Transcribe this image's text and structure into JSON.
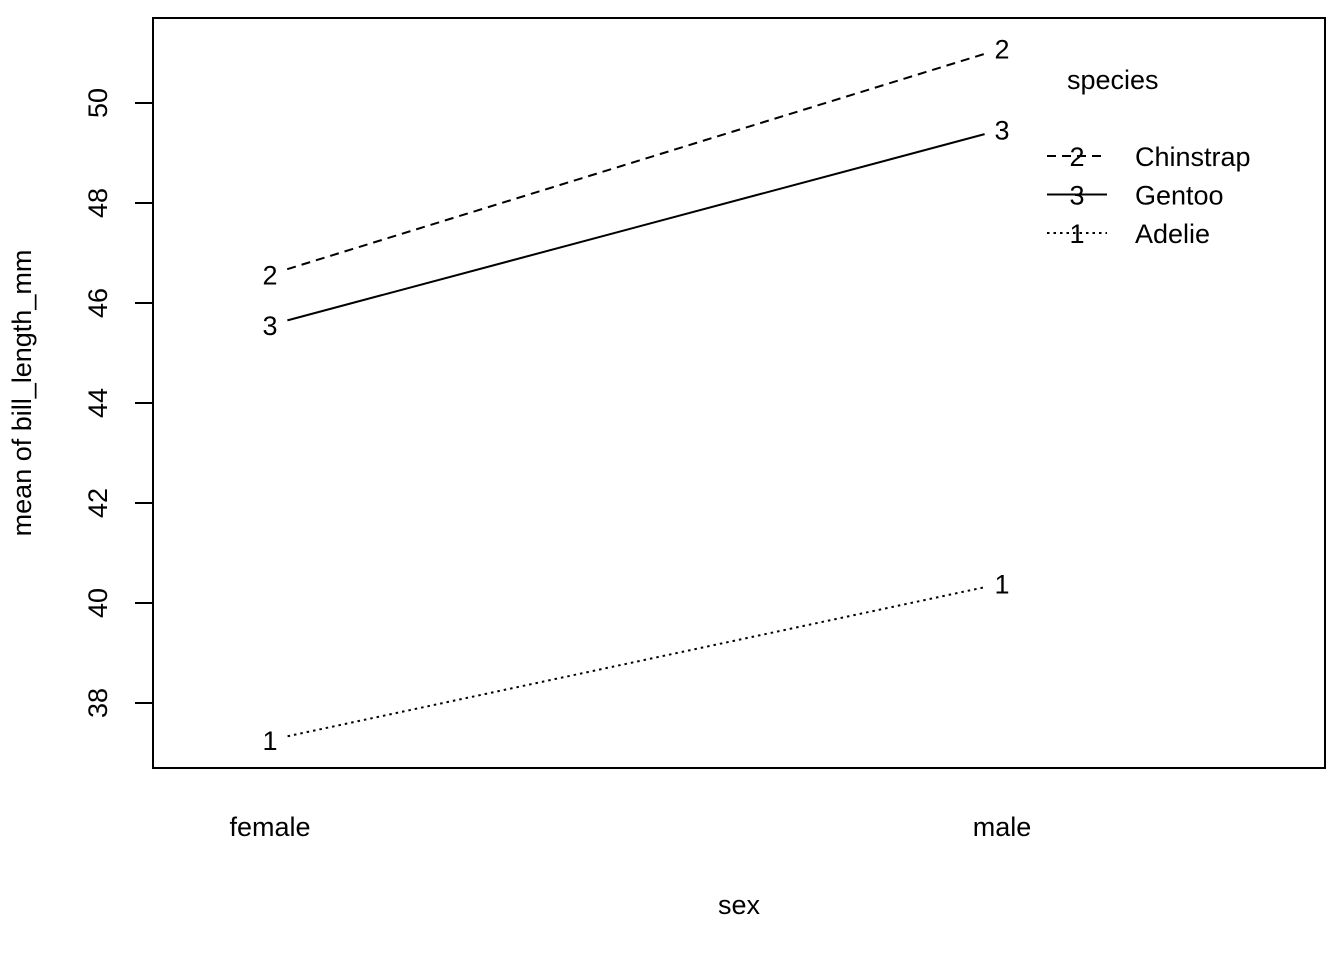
{
  "chart_data": {
    "type": "line",
    "title": "",
    "xlabel": "sex",
    "ylabel": "mean of  bill_length_mm",
    "categories": [
      "female",
      "male"
    ],
    "ylim": [
      36.7,
      51.7
    ],
    "yticks": [
      "38",
      "40",
      "42",
      "44",
      "46",
      "48",
      "50"
    ],
    "grid": false,
    "legend": {
      "title": "species",
      "position": "top-right",
      "entries": [
        {
          "symbol": "2",
          "label": "Chinstrap",
          "linestyle": "dashed"
        },
        {
          "symbol": "3",
          "label": "Gentoo",
          "linestyle": "solid"
        },
        {
          "symbol": "1",
          "label": "Adelie",
          "linestyle": "dotted"
        }
      ]
    },
    "series": [
      {
        "name": "Adelie",
        "symbol": "1",
        "linestyle": "dotted",
        "values": [
          37.26,
          40.39
        ]
      },
      {
        "name": "Chinstrap",
        "symbol": "2",
        "linestyle": "dashed",
        "values": [
          46.57,
          51.09
        ]
      },
      {
        "name": "Gentoo",
        "symbol": "3",
        "linestyle": "solid",
        "values": [
          45.56,
          49.47
        ]
      }
    ]
  }
}
